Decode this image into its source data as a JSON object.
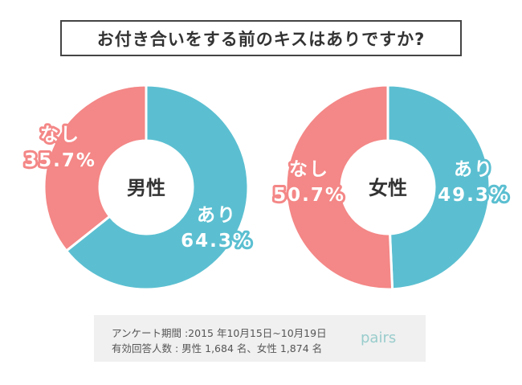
{
  "chart_data": [
    {
      "type": "pie",
      "donut": true,
      "title": "男性",
      "categories": [
        "あり",
        "なし"
      ],
      "values": [
        64.3,
        35.7
      ],
      "labels": [
        "64.3%",
        "35.7%"
      ]
    },
    {
      "type": "pie",
      "donut": true,
      "title": "女性",
      "categories": [
        "あり",
        "なし"
      ],
      "values": [
        49.3,
        50.7
      ],
      "labels": [
        "49.3%",
        "50.7%"
      ]
    }
  ],
  "header": {
    "title": "お付き合いをする前のキスはありですか?"
  },
  "colors": {
    "yes": "#5bbfd1",
    "no": "#f48787"
  },
  "footer": {
    "line1": "アンケート期間 :2015 年10月15日~10月19日",
    "line2": "有効回答人数 : 男性 1,684 名、女性 1,874 名",
    "logo": "pairs"
  }
}
